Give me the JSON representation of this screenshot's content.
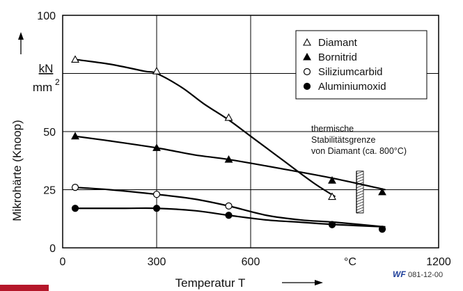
{
  "chart_data": {
    "type": "line",
    "title": "",
    "xlabel": "Temperatur T",
    "ylabel": "Mikrohärte (Knoop)",
    "yunit_num": "kN",
    "yunit_den": "mm",
    "yunit_exp": "2",
    "xunit": "°C",
    "xlim": [
      0,
      1200
    ],
    "ylim": [
      0,
      100
    ],
    "x_ticks": [
      {
        "v": 0,
        "label": "0"
      },
      {
        "v": 300,
        "label": "300"
      },
      {
        "v": 600,
        "label": "600"
      },
      {
        "v": 1200,
        "label": "1200"
      }
    ],
    "y_ticks": [
      {
        "v": 0,
        "label": "0"
      },
      {
        "v": 25,
        "label": "25"
      },
      {
        "v": 50,
        "label": "50"
      },
      {
        "v": 100,
        "label": "100"
      }
    ],
    "grid": true,
    "legend_position": "top-right",
    "series": [
      {
        "name": "Diamant",
        "marker": "triangle-open",
        "points": [
          [
            40,
            81
          ],
          [
            300,
            76
          ],
          [
            530,
            56
          ],
          [
            860,
            22
          ]
        ],
        "curve": [
          [
            40,
            81
          ],
          [
            150,
            79
          ],
          [
            260,
            76
          ],
          [
            300,
            75
          ],
          [
            380,
            69
          ],
          [
            450,
            62
          ],
          [
            530,
            55
          ],
          [
            600,
            48
          ],
          [
            700,
            38
          ],
          [
            800,
            28
          ],
          [
            870,
            22
          ]
        ]
      },
      {
        "name": "Bornitrid",
        "marker": "triangle-filled",
        "points": [
          [
            40,
            48
          ],
          [
            300,
            43
          ],
          [
            530,
            38
          ],
          [
            860,
            29
          ],
          [
            1020,
            24
          ]
        ],
        "curve": [
          [
            40,
            48
          ],
          [
            150,
            46
          ],
          [
            300,
            43
          ],
          [
            420,
            40
          ],
          [
            530,
            38
          ],
          [
            700,
            34
          ],
          [
            860,
            30
          ],
          [
            1030,
            25
          ]
        ]
      },
      {
        "name": "Siliziumcarbid",
        "marker": "circle-open",
        "points": [
          [
            40,
            26
          ],
          [
            300,
            23
          ],
          [
            530,
            18
          ],
          [
            860,
            10
          ]
        ],
        "curve": [
          [
            40,
            26
          ],
          [
            150,
            25
          ],
          [
            300,
            23
          ],
          [
            420,
            21
          ],
          [
            530,
            18
          ],
          [
            650,
            14
          ],
          [
            760,
            12
          ],
          [
            870,
            11
          ],
          [
            1030,
            9
          ]
        ]
      },
      {
        "name": "Aluminiumoxid",
        "marker": "circle-filled",
        "points": [
          [
            40,
            17
          ],
          [
            300,
            17
          ],
          [
            530,
            14
          ],
          [
            860,
            10
          ],
          [
            1020,
            8
          ]
        ],
        "curve": [
          [
            40,
            17
          ],
          [
            200,
            17
          ],
          [
            300,
            17
          ],
          [
            420,
            16
          ],
          [
            530,
            14
          ],
          [
            650,
            12
          ],
          [
            760,
            11
          ],
          [
            870,
            10
          ],
          [
            1030,
            9
          ]
        ]
      }
    ],
    "annotation": {
      "lines": [
        "thermische",
        "Stabilitätsgrenze",
        "von Diamant (ca. 800°C)"
      ],
      "x_limit": 800
    }
  },
  "footer": {
    "logo": "WF",
    "code": "081-12-00"
  }
}
